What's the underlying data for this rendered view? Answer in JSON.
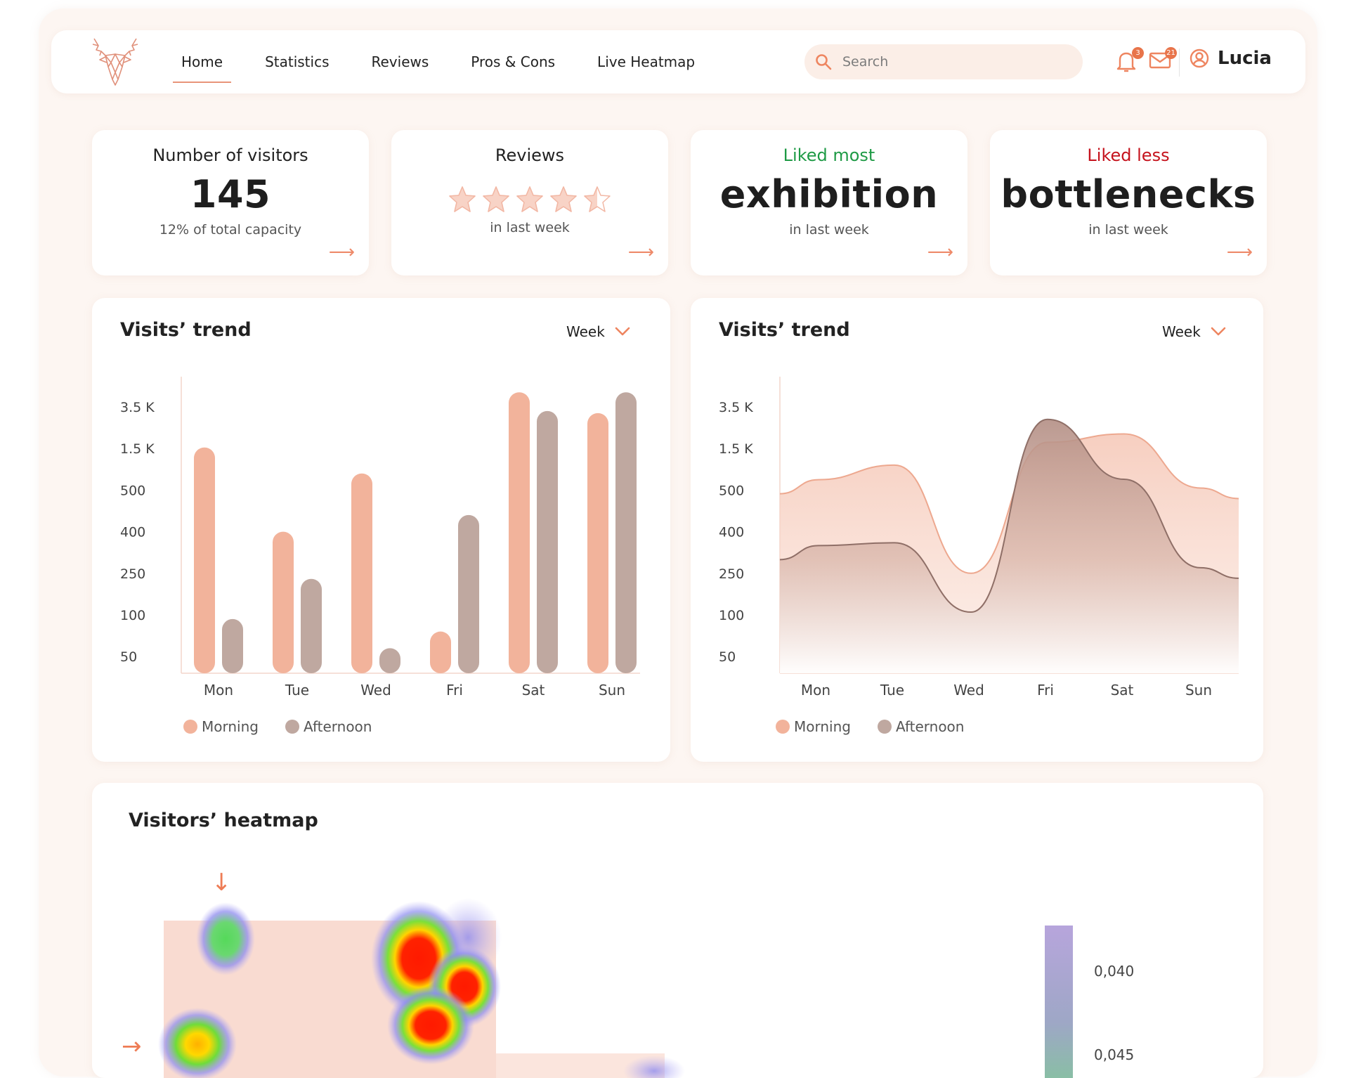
{
  "header": {
    "nav": [
      "Home",
      "Statistics",
      "Reviews",
      "Pros & Cons",
      "Live Heatmap"
    ],
    "active_nav": "Home",
    "search_placeholder": "Search",
    "notifications_count": "3",
    "messages_count": "21",
    "user_name": "Lucia"
  },
  "kpis": [
    {
      "title": "Number of visitors",
      "value": "145",
      "sub": "12% of total capacity",
      "arrow": "⟶"
    },
    {
      "title": "Reviews",
      "rating": 4.5,
      "max_rating": 5,
      "sub": "in last week",
      "arrow": "⟶"
    },
    {
      "title": "Liked most",
      "value": "exhibition",
      "sub": "in last week",
      "arrow": "⟶"
    },
    {
      "title": "Liked less",
      "value": "bottlenecks",
      "sub": "in last week",
      "arrow": "⟶"
    }
  ],
  "charts": {
    "left": {
      "title": "Visits’ trend",
      "period": "Week"
    },
    "right": {
      "title": "Visits’ trend",
      "period": "Week"
    }
  },
  "chart_data": [
    {
      "type": "bar",
      "title": "Visits’ trend",
      "y_ticks": [
        "3.5 K",
        "1.5 K",
        "500",
        "400",
        "250",
        "100",
        "50"
      ],
      "y_tick_values": [
        3500,
        1500,
        500,
        400,
        250,
        100,
        50
      ],
      "categories": [
        "Mon",
        "Tue",
        "Wed",
        "Fri",
        "Sat",
        "Sun"
      ],
      "series": [
        {
          "name": "Morning",
          "color": "#f2b39b",
          "values": [
            1550,
            400,
            900,
            80,
            4200,
            3200
          ]
        },
        {
          "name": "Afternoon",
          "color": "#bfa8a0",
          "values": [
            95,
            230,
            60,
            440,
            3300,
            4200
          ]
        }
      ],
      "legend_position": "bottom-left"
    },
    {
      "type": "area",
      "title": "Visits’ trend",
      "y_ticks": [
        "3.5 K",
        "1.5 K",
        "500",
        "400",
        "250",
        "100",
        "50"
      ],
      "y_tick_values": [
        3500,
        1500,
        500,
        400,
        250,
        100,
        50
      ],
      "categories": [
        "Mon",
        "Tue",
        "Wed",
        "Fri",
        "Sat",
        "Sun"
      ],
      "series": [
        {
          "name": "Morning",
          "color": "#f2b39b",
          "values": [
            750,
            1100,
            250,
            1800,
            2200,
            550
          ]
        },
        {
          "name": "Afternoon",
          "color": "#a88a80",
          "values": [
            350,
            360,
            110,
            2900,
            760,
            270
          ]
        }
      ],
      "legend_position": "bottom-left"
    }
  ],
  "heatmap": {
    "title": "Visitors’ heatmap",
    "scale_labels": [
      "0,040",
      "0,045"
    ],
    "marker_arrows": [
      "↓",
      "→"
    ]
  }
}
